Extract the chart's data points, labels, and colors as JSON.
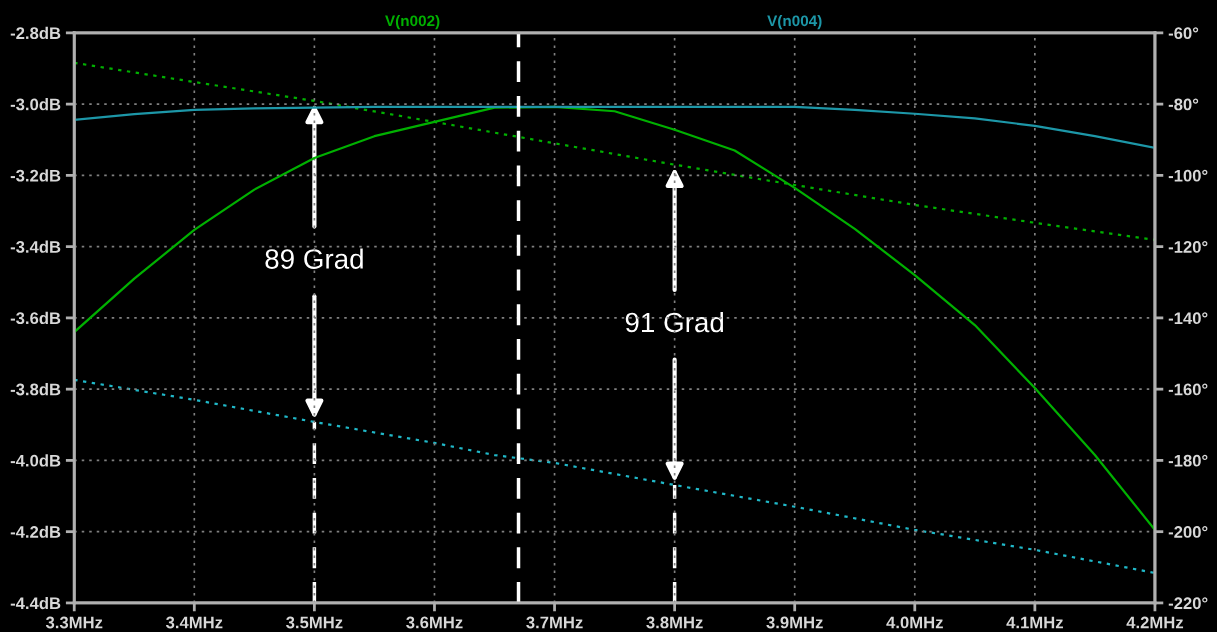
{
  "chart_data": {
    "type": "line",
    "legend": "top",
    "grid": true,
    "x": [
      3.3,
      3.35,
      3.4,
      3.45,
      3.5,
      3.55,
      3.6,
      3.65,
      3.7,
      3.75,
      3.8,
      3.85,
      3.9,
      3.95,
      4.0,
      4.05,
      4.1,
      4.15,
      4.2
    ],
    "series": [
      {
        "name": "V(n002)",
        "color": "#00b000",
        "line_style": "solid",
        "values": [
          -3.64,
          -3.49,
          -3.353,
          -3.24,
          -3.151,
          -3.09,
          -3.05,
          -3.01,
          -3.008,
          -3.02,
          -3.072,
          -3.13,
          -3.235,
          -3.35,
          -3.48,
          -3.62,
          -3.797,
          -3.985,
          -4.195
        ]
      },
      {
        "name": "V(n004)",
        "color": "#1d97a8",
        "line_style": "solid",
        "values": [
          -3.044,
          -3.028,
          -3.016,
          -3.012,
          -3.01,
          -3.008,
          -3.008,
          -3.008,
          -3.008,
          -3.008,
          -3.008,
          -3.008,
          -3.008,
          -3.016,
          -3.027,
          -3.04,
          -3.061,
          -3.09,
          -3.123
        ]
      },
      {
        "axis": "y2",
        "color": "#00b000",
        "line_style": "dotted",
        "x": [
          3.3,
          3.4,
          3.5,
          3.6,
          3.7,
          3.8,
          3.9,
          4.0,
          4.1,
          4.2
        ],
        "values": [
          -68.4,
          -73.8,
          -79.1,
          -85,
          -91,
          -97,
          -102.7,
          -108.3,
          -113.3,
          -118.1
        ]
      },
      {
        "axis": "y2",
        "color": "#20b8c8",
        "line_style": "dotted",
        "x": [
          3.3,
          3.4,
          3.5,
          3.6,
          3.65,
          3.7,
          3.8,
          3.9,
          4.0,
          4.1,
          4.2
        ],
        "values": [
          -157.4,
          -163,
          -169.2,
          -175.1,
          -178.5,
          -180.7,
          -186.9,
          -193,
          -199.5,
          -205.1,
          -211.6
        ]
      }
    ],
    "xlim": [
      3.3,
      4.2
    ],
    "xticks": [
      {
        "value": 3.3,
        "label": "3.3MHz"
      },
      {
        "value": 3.4,
        "label": "3.4MHz"
      },
      {
        "value": 3.5,
        "label": "3.5MHz"
      },
      {
        "value": 3.6,
        "label": "3.6MHz"
      },
      {
        "value": 3.7,
        "label": "3.7MHz"
      },
      {
        "value": 3.8,
        "label": "3.8MHz"
      },
      {
        "value": 3.9,
        "label": "3.9MHz"
      },
      {
        "value": 4.0,
        "label": "4.0MHz"
      },
      {
        "value": 4.1,
        "label": "4.1MHz"
      },
      {
        "value": 4.2,
        "label": "4.2MHz"
      }
    ],
    "ylim": [
      -4.4,
      -2.8
    ],
    "yticks": [
      {
        "value": -2.8,
        "label": "-2.8dB"
      },
      {
        "value": -3.0,
        "label": "-3.0dB"
      },
      {
        "value": -3.2,
        "label": "-3.2dB"
      },
      {
        "value": -3.4,
        "label": "-3.4dB"
      },
      {
        "value": -3.6,
        "label": "-3.6dB"
      },
      {
        "value": -3.8,
        "label": "-3.8dB"
      },
      {
        "value": -4.0,
        "label": "-4.0dB"
      },
      {
        "value": -4.2,
        "label": "-4.2dB"
      },
      {
        "value": -4.4,
        "label": "-4.4dB"
      }
    ],
    "y2lim": [
      -220,
      -60
    ],
    "y2ticks": [
      {
        "value": -60,
        "label": "-60°"
      },
      {
        "value": -80,
        "label": "-80°"
      },
      {
        "value": -100,
        "label": "-100°"
      },
      {
        "value": -120,
        "label": "-120°"
      },
      {
        "value": -140,
        "label": "-140°"
      },
      {
        "value": -160,
        "label": "-160°"
      },
      {
        "value": -180,
        "label": "-180°"
      },
      {
        "value": -200,
        "label": "-200°"
      },
      {
        "value": -220,
        "label": "-220°"
      }
    ],
    "ref_lines": [
      {
        "axis": "x",
        "value": 3.67,
        "color": "#ffffff",
        "line_style": "dashed"
      },
      {
        "axis": "x",
        "value": 3.5,
        "label": "89 Grad",
        "color": "#ffffff",
        "line_style": "dashed"
      },
      {
        "axis": "x",
        "value": 3.8,
        "label": "91 Grad",
        "color": "#ffffff",
        "line_style": "dashed"
      }
    ]
  }
}
